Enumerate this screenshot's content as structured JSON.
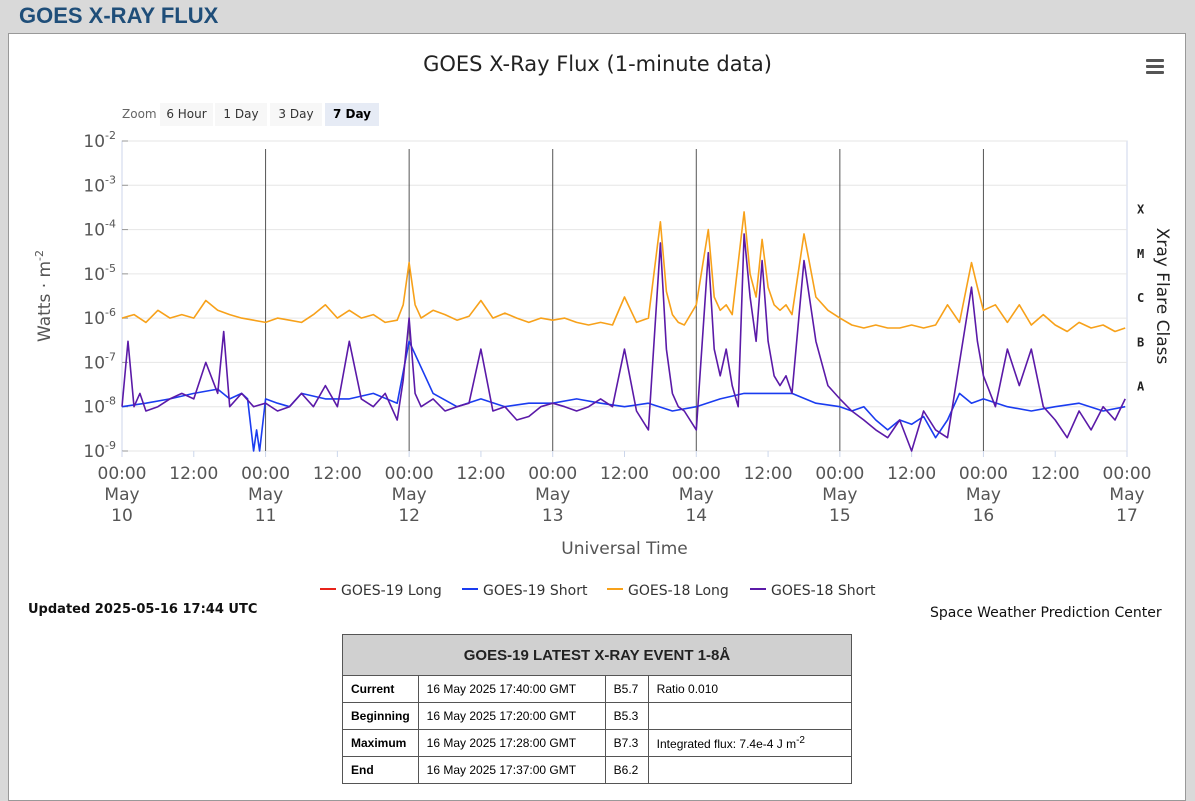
{
  "page_heading": "GOES X-RAY FLUX",
  "chart_title": "GOES X-Ray Flux (1-minute data)",
  "zoom": {
    "label": "Zoom",
    "buttons": [
      "6 Hour",
      "1 Day",
      "3 Day",
      "7 Day"
    ],
    "active": "7 Day"
  },
  "updated_text": "Updated 2025-05-16 17:44 UTC",
  "credit_text": "Space Weather Prediction Center",
  "event_table": {
    "title": "GOES-19 LATEST X-RAY EVENT 1-8Å",
    "rows": [
      {
        "label": "Current",
        "time": "16 May 2025 17:40:00 GMT",
        "class": "B5.7",
        "extra": "Ratio 0.010"
      },
      {
        "label": "Beginning",
        "time": "16 May 2025 17:20:00 GMT",
        "class": "B5.3",
        "extra": ""
      },
      {
        "label": "Maximum",
        "time": "16 May 2025 17:28:00 GMT",
        "class": "B7.3",
        "extra": "Integrated flux: 7.4e-4 J m",
        "extra_sup": "-2"
      },
      {
        "label": "End",
        "time": "16 May 2025 17:37:00 GMT",
        "class": "B6.2",
        "extra": ""
      }
    ]
  },
  "chart_data": {
    "type": "line",
    "title": "GOES X-Ray Flux (1-minute data)",
    "xlabel": "Universal Time",
    "ylabel": "Watts · m",
    "ylabel_sup": "-2",
    "y2label": "Xray Flare Class",
    "y_scale": "log",
    "ylim": [
      1e-09,
      0.01
    ],
    "y_ticks": [
      {
        "base": "10",
        "exp": "-2"
      },
      {
        "base": "10",
        "exp": "-3"
      },
      {
        "base": "10",
        "exp": "-4"
      },
      {
        "base": "10",
        "exp": "-5"
      },
      {
        "base": "10",
        "exp": "-6"
      },
      {
        "base": "10",
        "exp": "-7"
      },
      {
        "base": "10",
        "exp": "-8"
      },
      {
        "base": "10",
        "exp": "-9"
      }
    ],
    "flare_classes": [
      {
        "label": "X",
        "value": 0.0001
      },
      {
        "label": "M",
        "value": 1e-05
      },
      {
        "label": "C",
        "value": 1e-06
      },
      {
        "label": "B",
        "value": 1e-07
      },
      {
        "label": "A",
        "value": 1e-08
      }
    ],
    "xlim_hours": [
      0,
      168
    ],
    "x_ticks": [
      {
        "h": 0,
        "time": "00:00",
        "month": "May",
        "day": "10"
      },
      {
        "h": 12,
        "time": "12:00",
        "month": "",
        "day": ""
      },
      {
        "h": 24,
        "time": "00:00",
        "month": "May",
        "day": "11"
      },
      {
        "h": 36,
        "time": "12:00",
        "month": "",
        "day": ""
      },
      {
        "h": 48,
        "time": "00:00",
        "month": "May",
        "day": "12"
      },
      {
        "h": 60,
        "time": "12:00",
        "month": "",
        "day": ""
      },
      {
        "h": 72,
        "time": "00:00",
        "month": "May",
        "day": "13"
      },
      {
        "h": 84,
        "time": "12:00",
        "month": "",
        "day": ""
      },
      {
        "h": 96,
        "time": "00:00",
        "month": "May",
        "day": "14"
      },
      {
        "h": 108,
        "time": "12:00",
        "month": "",
        "day": ""
      },
      {
        "h": 120,
        "time": "00:00",
        "month": "May",
        "day": "15"
      },
      {
        "h": 132,
        "time": "12:00",
        "month": "",
        "day": ""
      },
      {
        "h": 144,
        "time": "00:00",
        "month": "May",
        "day": "16"
      },
      {
        "h": 156,
        "time": "12:00",
        "month": "",
        "day": ""
      },
      {
        "h": 168,
        "time": "00:00",
        "month": "May",
        "day": "17"
      }
    ],
    "grid": true,
    "legend_position": "bottom-center",
    "series": [
      {
        "name": "GOES-19 Long",
        "color": "#e8231a",
        "x": [
          0,
          168
        ],
        "y": [
          null,
          null
        ]
      },
      {
        "name": "GOES-19 Short",
        "color": "#1a3cf0",
        "x": [
          0,
          4,
          8,
          12,
          16,
          18,
          20,
          21,
          22,
          22.5,
          23,
          24,
          26,
          28,
          30,
          34,
          38,
          42,
          46,
          48,
          52,
          56,
          60,
          64,
          68,
          72,
          76,
          80,
          84,
          88,
          92,
          96,
          100,
          104,
          108,
          112,
          116,
          120,
          122,
          124,
          126,
          128,
          130,
          132,
          134,
          136,
          138,
          140,
          142,
          144,
          148,
          152,
          156,
          160,
          164,
          167.7
        ],
        "y": [
          1e-08,
          1.2e-08,
          1.5e-08,
          2e-08,
          2.5e-08,
          1.5e-08,
          2e-08,
          1.5e-08,
          1e-09,
          3e-09,
          1e-09,
          1.5e-08,
          1.2e-08,
          1e-08,
          2e-08,
          1.5e-08,
          1.5e-08,
          2e-08,
          1.2e-08,
          3e-07,
          2e-08,
          1e-08,
          1.5e-08,
          1e-08,
          1.2e-08,
          1.2e-08,
          1.5e-08,
          1.2e-08,
          1e-08,
          1.2e-08,
          8e-09,
          1e-08,
          1.5e-08,
          2e-08,
          2e-08,
          2e-08,
          1.2e-08,
          1e-08,
          8e-09,
          1e-08,
          5e-09,
          3e-09,
          5e-09,
          4e-09,
          6e-09,
          2e-09,
          5e-09,
          2e-08,
          1.2e-08,
          1.5e-08,
          1e-08,
          8e-09,
          1e-08,
          1.2e-08,
          8e-09,
          1e-08
        ]
      },
      {
        "name": "GOES-18 Long",
        "color": "#f7a11a",
        "x": [
          0,
          2,
          4,
          6,
          8,
          10,
          12,
          14,
          16,
          18,
          20,
          22,
          24,
          26,
          28,
          30,
          32,
          34,
          36,
          38,
          40,
          42,
          44,
          46,
          47,
          48,
          49,
          50,
          52,
          54,
          56,
          58,
          60,
          62,
          64,
          66,
          68,
          70,
          72,
          74,
          76,
          78,
          80,
          82,
          84,
          86,
          88,
          90,
          91,
          92,
          93,
          94,
          96,
          98,
          99,
          100,
          101,
          102,
          104,
          105,
          106,
          107,
          108,
          109,
          110,
          111,
          112,
          114,
          116,
          118,
          120,
          122,
          124,
          126,
          128,
          130,
          132,
          134,
          136,
          138,
          140,
          142,
          143,
          144,
          146,
          148,
          150,
          152,
          154,
          156,
          158,
          160,
          162,
          164,
          166,
          167.7
        ],
        "y": [
          1e-06,
          1.2e-06,
          8e-07,
          1.5e-06,
          1e-06,
          1.2e-06,
          1e-06,
          2.5e-06,
          1.5e-06,
          1.2e-06,
          1e-06,
          9e-07,
          8e-07,
          1e-06,
          9e-07,
          8e-07,
          1.2e-06,
          2e-06,
          1e-06,
          1.5e-06,
          1e-06,
          1.2e-06,
          8e-07,
          9e-07,
          2e-06,
          1.8e-05,
          2e-06,
          1e-06,
          1.5e-06,
          1.2e-06,
          9e-07,
          1.1e-06,
          2.5e-06,
          1e-06,
          1.3e-06,
          1e-06,
          8e-07,
          1e-06,
          9e-07,
          1e-06,
          8e-07,
          7e-07,
          8e-07,
          7e-07,
          3e-06,
          8e-07,
          1e-06,
          0.00015,
          4e-06,
          1.2e-06,
          8e-07,
          7e-07,
          2e-06,
          0.0001,
          3e-06,
          1.5e-06,
          2e-06,
          1.2e-06,
          0.00025,
          1e-05,
          3e-06,
          6e-05,
          5e-06,
          2e-06,
          1.5e-06,
          2e-06,
          1.2e-06,
          8e-05,
          3e-06,
          1.5e-06,
          1e-06,
          7e-07,
          6e-07,
          7e-07,
          6e-07,
          6e-07,
          7e-07,
          6e-07,
          7e-07,
          2e-06,
          8e-07,
          1.8e-05,
          5e-06,
          1.5e-06,
          2e-06,
          8e-07,
          2e-06,
          7e-07,
          1.2e-06,
          7e-07,
          5e-07,
          8e-07,
          6e-07,
          7e-07,
          5e-07,
          6e-07
        ]
      },
      {
        "name": "GOES-18 Short",
        "color": "#5b1aa8",
        "x": [
          0,
          1,
          2,
          3,
          4,
          6,
          8,
          10,
          12,
          14,
          16,
          17,
          18,
          20,
          22,
          24,
          26,
          28,
          30,
          32,
          34,
          36,
          38,
          40,
          42,
          44,
          46,
          47,
          48,
          49,
          50,
          52,
          54,
          56,
          58,
          60,
          62,
          64,
          66,
          68,
          70,
          72,
          74,
          76,
          78,
          80,
          82,
          84,
          86,
          88,
          90,
          91,
          92,
          93,
          94,
          96,
          98,
          99,
          100,
          101,
          102,
          103,
          104,
          105,
          106,
          107,
          108,
          109,
          110,
          111,
          112,
          114,
          116,
          118,
          120,
          122,
          124,
          126,
          128,
          130,
          132,
          134,
          136,
          138,
          140,
          142,
          143,
          144,
          146,
          148,
          150,
          152,
          154,
          156,
          158,
          160,
          162,
          164,
          166,
          167.7
        ],
        "y": [
          1e-08,
          3e-07,
          1e-08,
          2e-08,
          8e-09,
          1e-08,
          1.5e-08,
          2e-08,
          1.5e-08,
          1e-07,
          2e-08,
          5e-07,
          1e-08,
          2e-08,
          1e-08,
          1.2e-08,
          8e-09,
          1e-08,
          2e-08,
          1e-08,
          3e-08,
          1e-08,
          3e-07,
          1.5e-08,
          1e-08,
          2e-08,
          5e-09,
          4e-08,
          1e-06,
          2e-08,
          1e-08,
          1.5e-08,
          8e-09,
          1e-08,
          1.2e-08,
          2e-07,
          8e-09,
          1e-08,
          5e-09,
          6e-09,
          1e-08,
          1.2e-08,
          1e-08,
          8e-09,
          1e-08,
          1.5e-08,
          1e-08,
          2e-07,
          8e-09,
          3e-09,
          5e-05,
          2e-07,
          2e-08,
          1e-08,
          8e-09,
          3e-09,
          3e-05,
          2e-07,
          5e-08,
          2e-07,
          3e-08,
          1e-08,
          8e-05,
          3e-06,
          3e-07,
          2e-05,
          3e-07,
          5e-08,
          3e-08,
          5e-08,
          2e-08,
          2e-05,
          3e-07,
          3e-08,
          1.5e-08,
          8e-09,
          5e-09,
          3e-09,
          2e-09,
          5e-09,
          1e-09,
          8e-09,
          3e-09,
          2e-09,
          1e-07,
          5e-06,
          3e-07,
          5e-08,
          1e-08,
          2e-07,
          3e-08,
          2e-07,
          1e-08,
          5e-09,
          2e-09,
          8e-09,
          3e-09,
          1e-08,
          5e-09,
          1.5e-08
        ]
      }
    ]
  }
}
